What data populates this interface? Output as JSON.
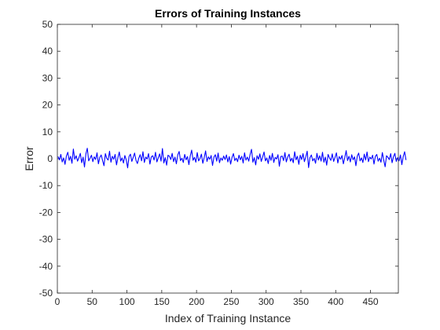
{
  "chart_data": {
    "type": "line",
    "title": "Errors of Training Instances",
    "xlabel": "Index of Training Instance",
    "ylabel": "Error",
    "xlim": [
      0,
      490
    ],
    "ylim": [
      -50,
      50
    ],
    "xticks": [
      0,
      50,
      100,
      150,
      200,
      250,
      300,
      350,
      400,
      450
    ],
    "yticks": [
      -50,
      -40,
      -30,
      -20,
      -10,
      0,
      10,
      20,
      30,
      40,
      50
    ],
    "grid": false,
    "series": [
      {
        "color": "#0000ff",
        "x_start": 1,
        "x_step": 2,
        "values": [
          0.8,
          -0.4,
          1.6,
          -1.2,
          0.3,
          -2.1,
          1.0,
          2.4,
          -0.6,
          0.9,
          -1.7,
          3.6,
          -0.2,
          1.1,
          -0.9,
          0.4,
          2.0,
          -1.5,
          0.6,
          -3.1,
          1.8,
          3.9,
          -0.8,
          0.2,
          1.3,
          -1.1,
          0.7,
          -0.3,
          2.2,
          -1.9,
          0.5,
          1.4,
          -0.7,
          -2.6,
          1.9,
          0.1,
          -0.5,
          2.8,
          -1.3,
          0.9,
          -0.2,
          1.6,
          -2.3,
          0.4,
          2.5,
          -0.9,
          0.3,
          -1.6,
          1.2,
          -0.4,
          -3.4,
          0.8,
          1.7,
          -1.0,
          0.5,
          2.1,
          -0.6,
          -1.8,
          0.2,
          1.5,
          -0.8,
          2.6,
          -1.4,
          0.6,
          -0.1,
          1.9,
          -2.0,
          0.7,
          1.1,
          -0.5,
          2.4,
          -1.2,
          0.3,
          1.8,
          -0.9,
          3.8,
          -1.6,
          0.4,
          -2.4,
          1.3,
          0.9,
          -0.3,
          2.0,
          -1.1,
          0.6,
          -1.9,
          1.4,
          2.7,
          -0.7,
          0.2,
          -1.4,
          1.6,
          -0.4,
          0.8,
          -2.2,
          1.1,
          3.2,
          -0.6,
          0.5,
          -1.3,
          2.3,
          -0.8,
          0.1,
          1.7,
          -1.7,
          0.4,
          2.9,
          -1.0,
          0.7,
          -0.2,
          1.2,
          -2.5,
          0.6,
          1.5,
          -0.9,
          2.1,
          -1.5,
          0.3,
          -0.6,
          1.0,
          -0.3,
          1.4,
          -1.2,
          0.8,
          -2.0,
          0.5,
          1.9,
          -0.7,
          0.2,
          -1.1,
          1.3,
          -0.4,
          0.9,
          -1.6,
          2.2,
          -0.5,
          0.6,
          -0.9,
          1.6,
          3.5,
          -1.3,
          0.4,
          -2.3,
          1.1,
          -0.2,
          1.8,
          -1.0,
          0.7,
          2.5,
          -0.8,
          0.3,
          -1.8,
          1.2,
          -0.6,
          2.0,
          -1.4,
          0.5,
          -0.1,
          1.5,
          -2.8,
          0.8,
          1.0,
          -0.7,
          2.3,
          -1.2,
          0.6,
          1.7,
          -0.9,
          0.2,
          -1.5,
          2.6,
          -0.4,
          0.9,
          -2.1,
          1.3,
          -0.3,
          1.9,
          -1.1,
          0.7,
          2.8,
          -3.3,
          0.4,
          1.4,
          -0.8,
          0.1,
          -1.7,
          2.0,
          -0.5,
          1.1,
          -0.9,
          2.4,
          -1.3,
          0.6,
          -2.4,
          1.6,
          0.3,
          -0.6,
          1.8,
          -1.0,
          0.5,
          2.2,
          -1.6,
          0.8,
          -0.2,
          1.2,
          -1.9,
          0.4,
          3.0,
          -0.7,
          0.9,
          -1.2,
          1.5,
          -0.4,
          0.7,
          -2.6,
          1.0,
          2.1,
          -0.8,
          0.3,
          -1.4,
          1.7,
          -0.5,
          2.5,
          -1.1,
          0.6,
          -0.1,
          1.3,
          -2.0,
          0.9,
          1.6,
          -0.9,
          0.2,
          -1.3,
          2.3,
          -0.6,
          -3.0,
          1.1,
          0.5,
          -0.3,
          1.9,
          -1.5,
          0.7,
          2.0,
          -1.0,
          0.4,
          -0.8,
          1.4,
          -2.2,
          0.8,
          2.6,
          -0.5
        ]
      }
    ]
  }
}
